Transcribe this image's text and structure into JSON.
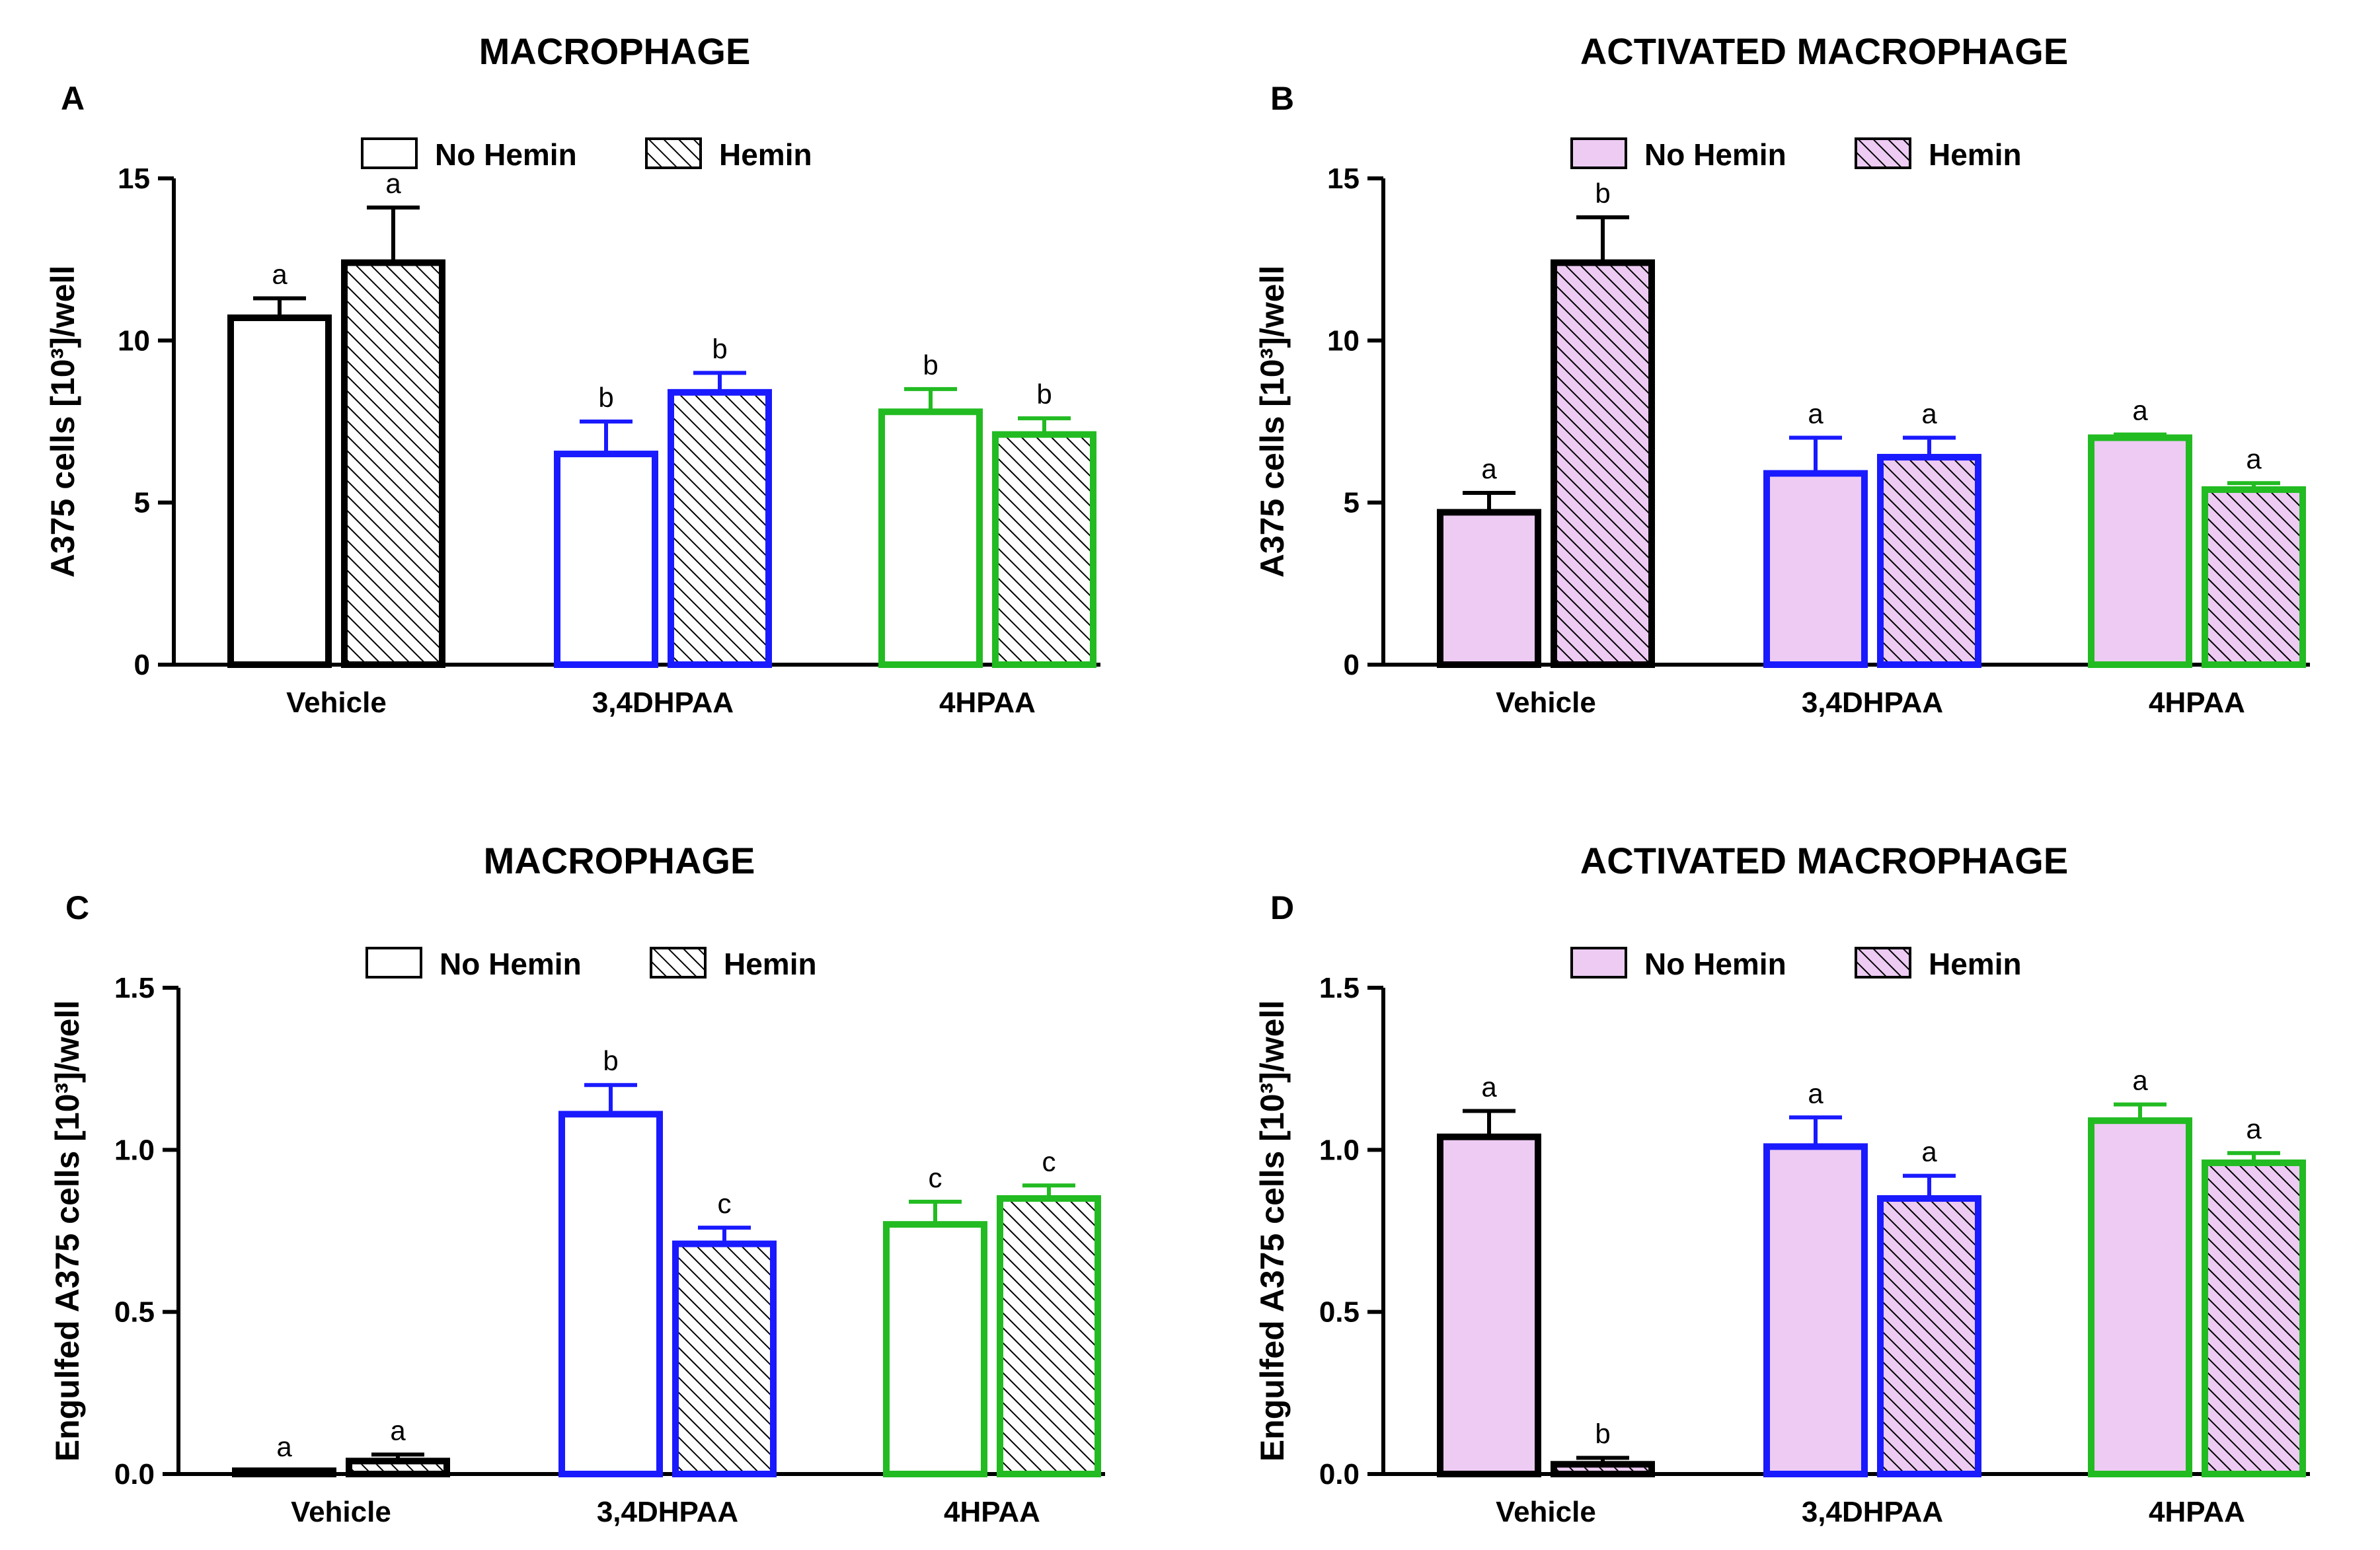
{
  "colors": {
    "vehicle": "#000000",
    "dhpaa34": "#1a1aff",
    "hpaa4": "#22bb22",
    "activated_fill": "#edcbf3",
    "plain_fill": "#ffffff"
  },
  "chart_data": [
    {
      "panel": "A",
      "type": "bar",
      "title": "MACROPHAGE",
      "ylabel": "A375 cells [10³]/well",
      "ylim": [
        0,
        15
      ],
      "yticks": [
        0,
        5,
        10,
        15
      ],
      "categories": [
        "Vehicle",
        "3,4DHPAA",
        "4HPAA"
      ],
      "legend": [
        "No Hemin",
        "Hemin"
      ],
      "legend_placement": "top-center",
      "fill": "white",
      "series": [
        {
          "name": "No Hemin",
          "values": [
            10.7,
            6.5,
            7.8
          ],
          "errors": [
            0.6,
            1.0,
            0.7
          ],
          "labels": [
            "a",
            "b",
            "b"
          ]
        },
        {
          "name": "Hemin",
          "values": [
            12.4,
            8.4,
            7.1
          ],
          "errors": [
            1.7,
            0.6,
            0.5
          ],
          "labels": [
            "a",
            "b",
            "b"
          ]
        }
      ]
    },
    {
      "panel": "B",
      "type": "bar",
      "title": "ACTIVATED MACROPHAGE",
      "ylabel": "A375 cells [10³]/well",
      "ylim": [
        0,
        15
      ],
      "yticks": [
        0,
        5,
        10,
        15
      ],
      "categories": [
        "Vehicle",
        "3,4DHPAA",
        "4HPAA"
      ],
      "legend": [
        "No Hemin",
        "Hemin"
      ],
      "legend_placement": "top-center",
      "fill": "pink",
      "series": [
        {
          "name": "No Hemin",
          "values": [
            4.7,
            5.9,
            7.0
          ],
          "errors": [
            0.6,
            1.1,
            0.1
          ],
          "labels": [
            "a",
            "a",
            "a"
          ]
        },
        {
          "name": "Hemin",
          "values": [
            12.4,
            6.4,
            5.4
          ],
          "errors": [
            1.4,
            0.6,
            0.2
          ],
          "labels": [
            "b",
            "a",
            "a"
          ]
        }
      ]
    },
    {
      "panel": "C",
      "type": "bar",
      "title": "MACROPHAGE",
      "ylabel": "Engulfed A375 cells [10³]/well",
      "ylim": [
        0,
        1.5
      ],
      "yticks": [
        0.0,
        0.5,
        1.0,
        1.5
      ],
      "categories": [
        "Vehicle",
        "3,4DHPAA",
        "4HPAA"
      ],
      "legend": [
        "No Hemin",
        "Hemin"
      ],
      "legend_placement": "top-center",
      "fill": "white",
      "series": [
        {
          "name": "No Hemin",
          "values": [
            0.01,
            1.11,
            0.77
          ],
          "errors": [
            0.0,
            0.09,
            0.07
          ],
          "labels": [
            "a",
            "b",
            "c"
          ]
        },
        {
          "name": "Hemin",
          "values": [
            0.04,
            0.71,
            0.85
          ],
          "errors": [
            0.02,
            0.05,
            0.04
          ],
          "labels": [
            "a",
            "c",
            "c"
          ]
        }
      ]
    },
    {
      "panel": "D",
      "type": "bar",
      "title": "ACTIVATED MACROPHAGE",
      "ylabel": "Engulfed A375 cells [10³]/well",
      "ylim": [
        0,
        1.5
      ],
      "yticks": [
        0.0,
        0.5,
        1.0,
        1.5
      ],
      "categories": [
        "Vehicle",
        "3,4DHPAA",
        "4HPAA"
      ],
      "legend": [
        "No Hemin",
        "Hemin"
      ],
      "legend_placement": "top-center",
      "fill": "pink",
      "series": [
        {
          "name": "No Hemin",
          "values": [
            1.04,
            1.01,
            1.09
          ],
          "errors": [
            0.08,
            0.09,
            0.05
          ],
          "labels": [
            "a",
            "a",
            "a"
          ]
        },
        {
          "name": "Hemin",
          "values": [
            0.03,
            0.85,
            0.96
          ],
          "errors": [
            0.02,
            0.07,
            0.03
          ],
          "labels": [
            "b",
            "a",
            "a"
          ]
        }
      ]
    }
  ]
}
